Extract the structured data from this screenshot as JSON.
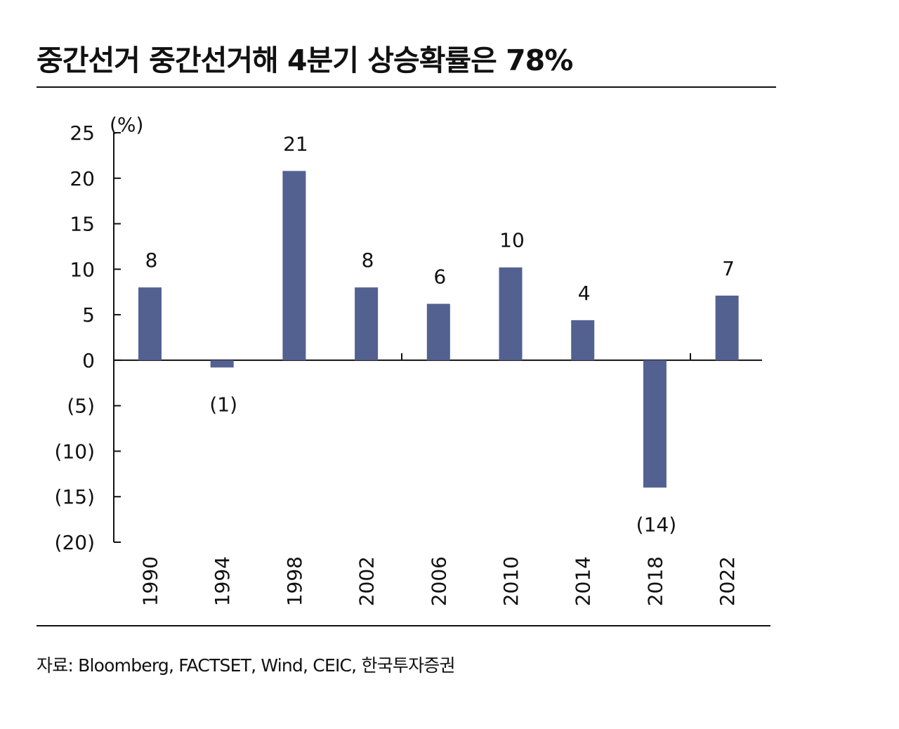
{
  "title": "중간선거 중간선거해 4분기 상승확률은 78%",
  "source": "자료: Bloomberg, FACTSET, Wind, CEIC, 한국투자증권",
  "colors": {
    "bar": "#536191",
    "axis": "#111111"
  },
  "chart_data": {
    "type": "bar",
    "title": "중간선거 중간선거해 4분기 상승확률은 78%",
    "xlabel": "",
    "ylabel": "",
    "unit": "(%)",
    "categories": [
      "1990",
      "1994",
      "1998",
      "2002",
      "2006",
      "2010",
      "2014",
      "2018",
      "2022"
    ],
    "values": [
      8,
      -0.8,
      20.8,
      8,
      6.2,
      10.2,
      4.4,
      -14,
      7.1
    ],
    "data_labels": [
      "8",
      "(1)",
      "21",
      "8",
      "6",
      "10",
      "4",
      "(14)",
      "7"
    ],
    "ylim": [
      -20,
      25
    ],
    "yticks": [
      25,
      20,
      15,
      10,
      5,
      0,
      -5,
      -10,
      -15,
      -20
    ],
    "ytick_labels": [
      "25",
      "20",
      "15",
      "10",
      "5",
      "0",
      "(5)",
      "(10)",
      "(15)",
      "(20)"
    ],
    "grid": false,
    "legend": "none",
    "x_tick_rotation": "vertical"
  }
}
